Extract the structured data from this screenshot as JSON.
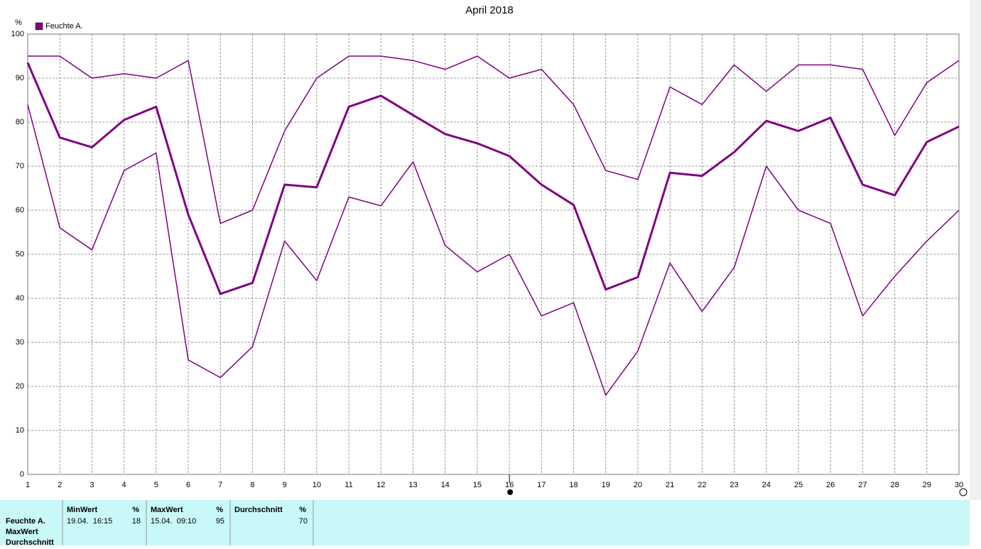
{
  "chart_data": {
    "type": "line",
    "title": "April 2018",
    "y_label": "%",
    "x": [
      1,
      2,
      3,
      4,
      5,
      6,
      7,
      8,
      9,
      10,
      11,
      12,
      13,
      14,
      15,
      16,
      17,
      18,
      19,
      20,
      21,
      22,
      23,
      24,
      25,
      26,
      27,
      28,
      29,
      30
    ],
    "xlim": [
      1,
      30
    ],
    "xticks": [
      1,
      2,
      3,
      4,
      5,
      6,
      7,
      8,
      9,
      10,
      11,
      12,
      13,
      14,
      15,
      16,
      17,
      18,
      19,
      20,
      21,
      22,
      23,
      24,
      25,
      26,
      27,
      28,
      29,
      30
    ],
    "ylim": [
      0,
      100
    ],
    "yticks": [
      0,
      10,
      20,
      30,
      40,
      50,
      60,
      70,
      80,
      90,
      100
    ],
    "grid": true,
    "series": [
      {
        "name": "Feuchte A.",
        "color": "#800080",
        "width": 3,
        "values": [
          93.5,
          76.5,
          74.3,
          80.5,
          83.5,
          59,
          41,
          43.5,
          65.8,
          65.2,
          83.5,
          86,
          81.6,
          77.3,
          75.2,
          72.3,
          65.8,
          61.2,
          42,
          44.8,
          68.5,
          67.8,
          73.2,
          80.3,
          78,
          81,
          65.8,
          63.4,
          75.5,
          79
        ]
      },
      {
        "color": "#800080",
        "width": 1.5,
        "values": [
          95,
          95,
          90,
          91,
          90,
          94,
          57,
          60,
          78,
          90,
          95,
          95,
          94,
          92,
          95,
          90,
          92,
          84,
          69,
          67,
          88,
          84,
          93,
          87,
          93,
          93,
          92,
          77,
          89,
          94
        ]
      },
      {
        "color": "#800080",
        "width": 1.5,
        "values": [
          84,
          56,
          51,
          69,
          73,
          26,
          22,
          29,
          53,
          44,
          63,
          61,
          71,
          52,
          46,
          50,
          36,
          39,
          18,
          28,
          48,
          37,
          47,
          70,
          60,
          57,
          36,
          45,
          53,
          60
        ]
      }
    ]
  },
  "summary_table": {
    "row_labels": [
      "Feuchte A.",
      "MaxWert",
      "Durchschnitt"
    ],
    "columns": [
      {
        "header": "MinWert",
        "unit": "%",
        "time": "19.04.  16:15",
        "value": 18
      },
      {
        "header": "MaxWert",
        "unit": "%",
        "time": "15.04.  09:10",
        "value": 95
      },
      {
        "header": "Durchschnitt",
        "unit": "%",
        "value": 70
      }
    ]
  }
}
